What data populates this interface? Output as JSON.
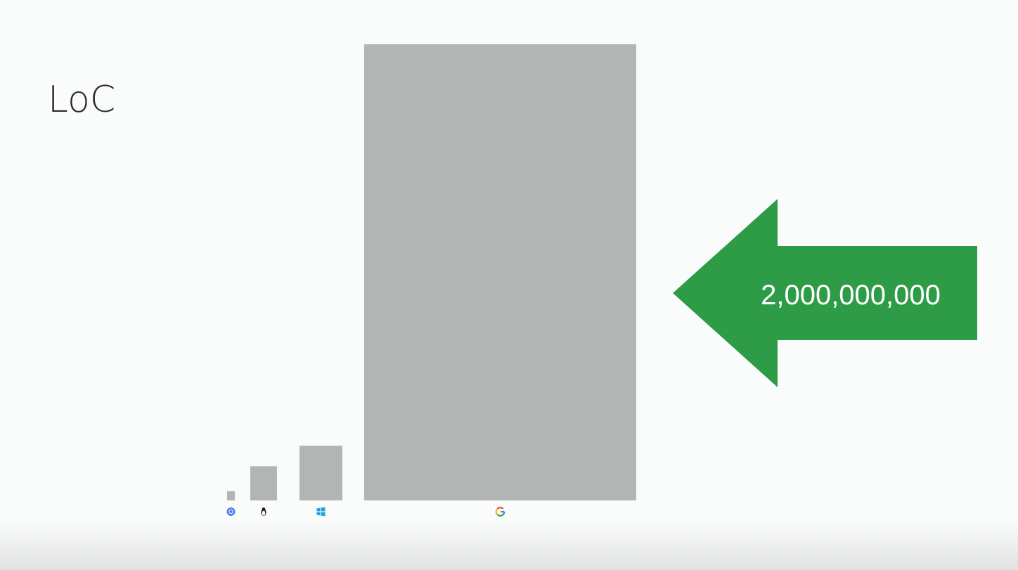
{
  "slide": {
    "title": "LoC"
  },
  "colors": {
    "bar": "#b3b5b4",
    "arrow": "#2e9c47",
    "arrow_text": "#ffffff",
    "background": "#fafcfb"
  },
  "chart_data": {
    "type": "bar",
    "title": "LoC",
    "categories": [
      "chromium-icon",
      "linux-tux-icon",
      "windows-icon",
      "google-g-icon"
    ],
    "values": [
      40000000,
      150000000,
      240000000,
      2000000000
    ],
    "ylim": [
      0,
      2000000000
    ],
    "grid": false,
    "legend": "none",
    "annotation": {
      "text": "2,000,000,000",
      "target_category": "google-g-icon"
    }
  }
}
